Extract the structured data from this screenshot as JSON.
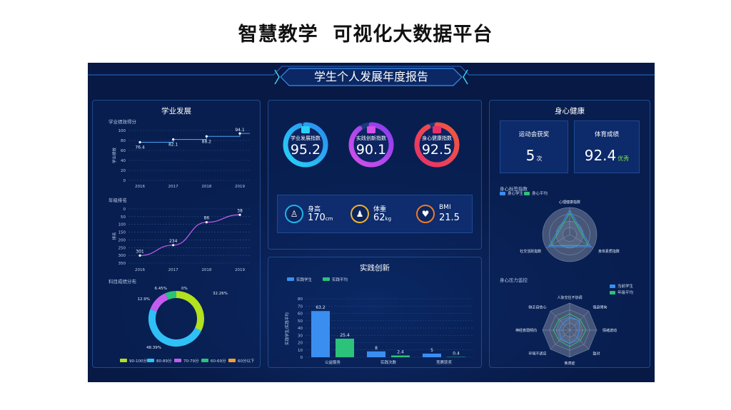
{
  "slide_title": "智慧教学  可视化大数据平台",
  "dashboard_title": "学生个人发展年度报告",
  "academic": {
    "title": "学业发展",
    "score_chart": {
      "label": "学业绩效得分",
      "ylabel": "学业绩效",
      "years": [
        "2016",
        "2017",
        "2018",
        "2019"
      ],
      "values": [
        76.4,
        82.1,
        88.2,
        94.1
      ],
      "y_ticks": [
        "100",
        "80",
        "60",
        "40",
        "20",
        "0"
      ]
    },
    "rank_chart": {
      "label": "年级排名",
      "ylabel": "排名",
      "years": [
        "2016",
        "2017",
        "2018",
        "2019"
      ],
      "values": [
        301,
        234,
        86,
        38
      ],
      "y_ticks": [
        "0",
        "50",
        "100",
        "150",
        "200",
        "250",
        "300",
        "350"
      ]
    },
    "grade_dist": {
      "label": "科目成绩分布",
      "slices": [
        {
          "label": "90-100分",
          "value": 32.26,
          "display": "32.26%",
          "color": "#b3e01f"
        },
        {
          "label": "80-89分",
          "value": 48.39,
          "display": "48.39%",
          "color": "#2fc0f5"
        },
        {
          "label": "70-79分",
          "value": 12.9,
          "display": "12.9%",
          "color": "#c55cf0"
        },
        {
          "label": "60-69分",
          "value": 6.45,
          "display": "6.45%",
          "color": "#2bc27a"
        },
        {
          "label": "60分以下",
          "value": 0,
          "display": "0%",
          "color": "#f0a030"
        }
      ]
    }
  },
  "indices": [
    {
      "label": "学业发展指数",
      "value": "95.2",
      "fraction": 0.952,
      "color_a": "#2a8cf0",
      "color_b": "#29d2f5",
      "icon": "book-icon"
    },
    {
      "label": "实践创新指数",
      "value": "90.1",
      "fraction": 0.901,
      "color_a": "#8a3cf0",
      "color_b": "#d450e8",
      "icon": "monitor-icon"
    },
    {
      "label": "身心健康指数",
      "value": "92.5",
      "fraction": 0.925,
      "color_a": "#f25a3a",
      "color_b": "#e8306a",
      "icon": "heart-icon"
    }
  ],
  "body_stats": [
    {
      "label": "身高",
      "value": "170",
      "unit": "cm",
      "color": "#22b3e8",
      "icon": "person-icon"
    },
    {
      "label": "体重",
      "value": "62",
      "unit": "kg",
      "color": "#f0b429",
      "icon": "scale-icon"
    },
    {
      "label": "BMI",
      "value": "21.5",
      "unit": "",
      "color": "#f07a2a",
      "icon": "book-open-icon"
    }
  ],
  "practice": {
    "title": "实践创新",
    "chart_data": {
      "type": "bar",
      "categories": [
        "公益服务",
        "实践次数",
        "竞赛获奖"
      ],
      "series": [
        {
          "name": "实践学生",
          "values": [
            63.2,
            8,
            5
          ],
          "color": "#3a8ef0"
        },
        {
          "name": "实践平均",
          "values": [
            25.4,
            2.4,
            0.4
          ],
          "color": "#2bc27a"
        }
      ],
      "ylabel": "实践学生/实践平均",
      "ylim": [
        0,
        80
      ],
      "y_ticks": [
        "80",
        "70",
        "60",
        "50",
        "40",
        "30",
        "20",
        "10",
        "0"
      ]
    }
  },
  "health": {
    "title": "身心健康",
    "sports_award": {
      "label": "运动会获奖",
      "value": "5",
      "unit": "次"
    },
    "pe_score": {
      "label": "体育成绩",
      "value": "92.4",
      "grade": "优秀"
    },
    "index_radar": {
      "label": "身心标签指数",
      "legend": [
        "身心学生",
        "身心平均"
      ],
      "axes": [
        "心理健康指数",
        "身体素质指数",
        "社交活跃指数"
      ]
    },
    "stress_radar": {
      "label": "身心压力监控",
      "legend": [
        "当前学生",
        "年级平均"
      ],
      "axes": [
        "人际交往不协调",
        "强迫倾向",
        "情绪波动",
        "敌对",
        "焦虑症",
        "环境不适应",
        "神经衰弱倾向",
        "缺乏自信心"
      ]
    }
  },
  "colors": {
    "bg": "#071944",
    "panel_border": "#1f4a8e",
    "accent_cyan": "#3ad1f0",
    "line": "#4aa3f5",
    "rank_line": "#c85ef0"
  }
}
